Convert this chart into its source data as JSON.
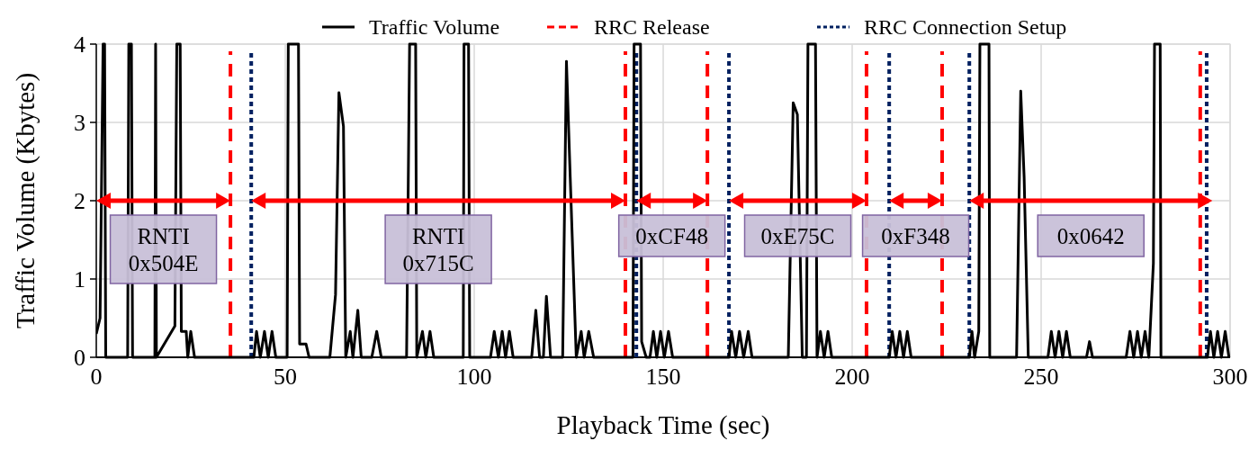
{
  "chart_data": {
    "type": "line",
    "xlabel": "Playback Time (sec)",
    "ylabel": "Traffic Volume (Kbytes)",
    "xlim": [
      0,
      300
    ],
    "xticks": [
      0,
      50,
      100,
      150,
      200,
      250,
      300
    ],
    "ylim": [
      0,
      4
    ],
    "yticks": [
      0,
      1,
      2,
      3,
      4
    ],
    "grid": true,
    "legend": "top",
    "marker": "none",
    "line_style": "solid",
    "series": [
      {
        "name": "Traffic Volume",
        "color": "#000000",
        "x": [
          0,
          1,
          1.8,
          2.2,
          2.5,
          8.3,
          8.6,
          9.3,
          9.6,
          15.5,
          15.7,
          15.9,
          20.8,
          21.3,
          21.6,
          22.2,
          22.5,
          23.8,
          24.2,
          25,
          26,
          41.7,
          42.4,
          43.4,
          44.5,
          45.5,
          46.5,
          47.5,
          50.5,
          50.8,
          53.5,
          53.8,
          55.5,
          56.3,
          61.8,
          63.3,
          64.2,
          65.4,
          66,
          67.2,
          67.9,
          69.2,
          70.1,
          72.9,
          74.2,
          75.4,
          82.1,
          82.9,
          84.5,
          84.8,
          86.3,
          87.2,
          88.3,
          89.3,
          97.1,
          97.3,
          98.5,
          98.8,
          104.3,
          105.3,
          106.4,
          107.4,
          108.3,
          109.3,
          110.3,
          115.2,
          116.3,
          117.3,
          118.3,
          119.1,
          120.2,
          123.4,
          124.4,
          125.4,
          127,
          128.3,
          129.1,
          130.3,
          131.6,
          142,
          142.3,
          144,
          144.3,
          145.5,
          146.5,
          147.4,
          148.3,
          149.3,
          150.3,
          151.4,
          152.5,
          167.4,
          168.1,
          169.2,
          170.2,
          171.3,
          172.5,
          173.5,
          183.1,
          184.4,
          185.5,
          186.8,
          187.9,
          188.3,
          190.3,
          190.7,
          191.6,
          192.6,
          193.6,
          194.6,
          209.8,
          210.6,
          211.6,
          212.6,
          213.6,
          214.6,
          215.6,
          231,
          231.7,
          232.4,
          233.5,
          233.8,
          236.2,
          236.4,
          243.5,
          244.6,
          245.5,
          246.6,
          251.8,
          252.7,
          253.7,
          254.7,
          255.7,
          256.7,
          257.7,
          262,
          262.8,
          263.6,
          272.5,
          273.5,
          274.5,
          275.5,
          276.5,
          277.5,
          278.5,
          279.7,
          280,
          281.5,
          281.7,
          294,
          294.8,
          295.7,
          296.7,
          297.7,
          298.7,
          299.7
        ],
        "values": [
          0.3,
          0.5,
          4,
          4,
          0,
          0,
          4,
          4,
          0,
          0,
          4,
          0,
          0.4,
          4,
          4,
          4,
          0.33,
          0.33,
          0,
          0.33,
          0,
          0,
          0.33,
          0,
          0.33,
          0,
          0.33,
          0,
          0,
          4,
          4,
          0.17,
          0.17,
          0,
          0,
          0.8,
          3.38,
          2.95,
          0,
          0.33,
          0,
          0.6,
          0,
          0,
          0.33,
          0,
          0,
          4,
          4,
          0,
          0.33,
          0,
          0.33,
          0,
          0,
          4,
          4,
          0,
          0,
          0.33,
          0,
          0.33,
          0,
          0.33,
          0,
          0,
          0.6,
          0,
          0,
          0.78,
          0,
          0,
          3.78,
          2.3,
          0,
          0.33,
          0,
          0.33,
          0,
          0,
          4,
          4,
          0.2,
          0,
          0,
          0.33,
          0,
          0.33,
          0,
          0.33,
          0,
          0,
          0.33,
          0,
          0.33,
          0,
          0.33,
          0,
          0,
          3.25,
          3.1,
          0,
          0,
          4,
          4,
          0,
          0.33,
          0,
          0.33,
          0,
          0,
          0.33,
          0,
          0.33,
          0,
          0.33,
          0,
          0,
          0.33,
          0,
          0.33,
          4,
          4,
          0,
          0,
          3.4,
          2.3,
          0,
          0,
          0.33,
          0,
          0.33,
          0,
          0.33,
          0,
          0,
          0.2,
          0,
          0,
          0.33,
          0,
          0.33,
          0,
          0.33,
          0,
          1.2,
          4,
          4,
          0,
          0,
          0.33,
          0,
          0.33,
          0,
          0.33,
          0
        ]
      }
    ],
    "ref_lines": [
      {
        "axis": "x",
        "value": 35.5,
        "label": "RRC Release",
        "color": "#ff0000",
        "line_style": "dashed"
      },
      {
        "axis": "x",
        "value": 140,
        "color": "#ff0000",
        "line_style": "dashed"
      },
      {
        "axis": "x",
        "value": 161.7,
        "color": "#ff0000",
        "line_style": "dashed"
      },
      {
        "axis": "x",
        "value": 203.8,
        "color": "#ff0000",
        "line_style": "dashed"
      },
      {
        "axis": "x",
        "value": 223.8,
        "color": "#ff0000",
        "line_style": "dashed"
      },
      {
        "axis": "x",
        "value": 292.1,
        "color": "#ff0000",
        "line_style": "dashed"
      },
      {
        "axis": "x",
        "value": 41,
        "label": "RRC Connection Setup",
        "color": "#002060",
        "line_style": "dotted"
      },
      {
        "axis": "x",
        "value": 142.9,
        "color": "#002060",
        "line_style": "dotted"
      },
      {
        "axis": "x",
        "value": 167.4,
        "color": "#002060",
        "line_style": "dotted"
      },
      {
        "axis": "x",
        "value": 209.8,
        "color": "#002060",
        "line_style": "dotted"
      },
      {
        "axis": "x",
        "value": 231,
        "color": "#002060",
        "line_style": "dotted"
      },
      {
        "axis": "x",
        "value": 293.8,
        "color": "#002060",
        "line_style": "dotted"
      }
    ],
    "annotations": [
      "RNTI\n0x504E",
      "RNTI\n0x715C",
      "0xCF48",
      "0xE75C",
      "0xF348",
      "0x0642"
    ]
  }
}
